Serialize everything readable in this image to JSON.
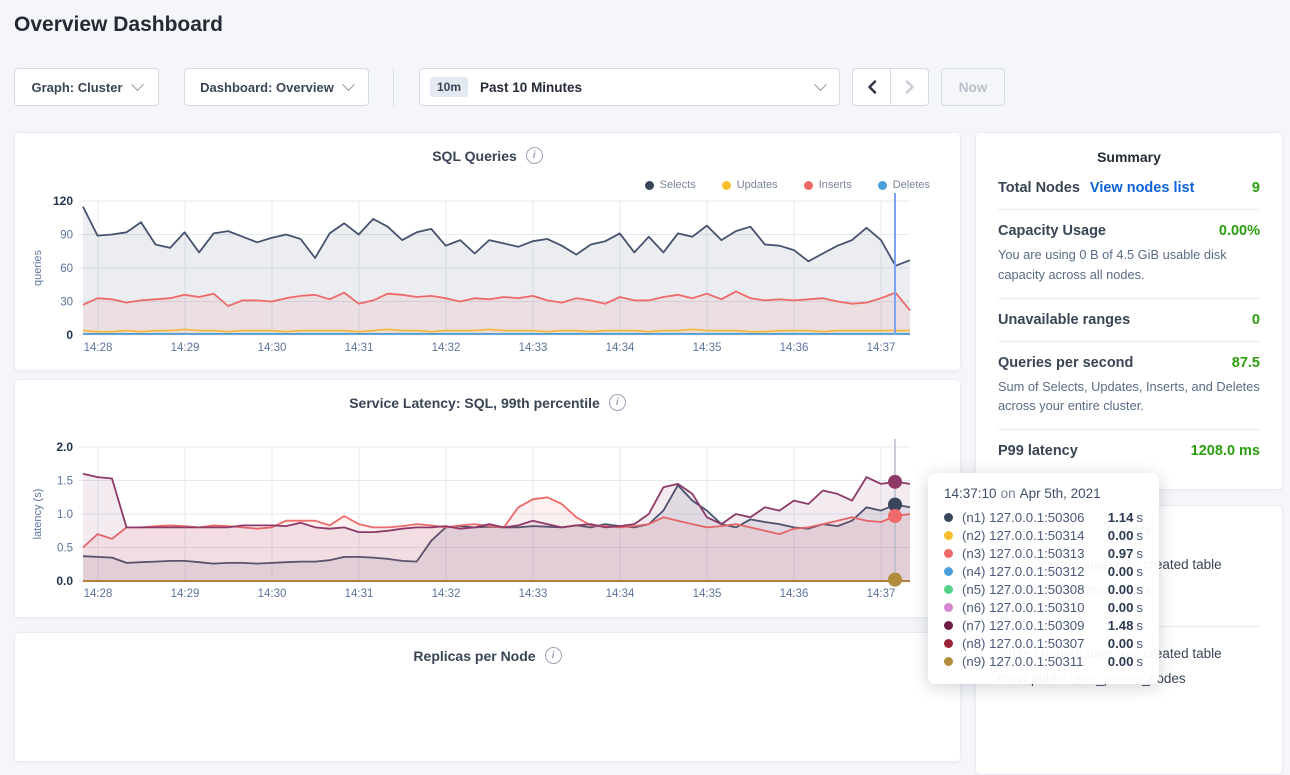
{
  "page_title": "Overview Dashboard",
  "controls": {
    "graph_dropdown": "Graph: Cluster",
    "dashboard_dropdown": "Dashboard: Overview",
    "time_chip": "10m",
    "time_label": "Past 10 Minutes",
    "now_label": "Now"
  },
  "chart_data": [
    {
      "type": "line",
      "title": "SQL Queries",
      "ylabel": "queries",
      "ylim": [
        0,
        120
      ],
      "yticks": [
        "0",
        "30",
        "60",
        "90",
        "120"
      ],
      "x_labels": [
        "14:28",
        "14:29",
        "14:30",
        "14:31",
        "14:32",
        "14:33",
        "14:34",
        "14:35",
        "14:36",
        "14:37"
      ],
      "legend_position": "top-right",
      "grid": true,
      "series": [
        {
          "name": "Selects",
          "color": "#46536e",
          "fill_opacity": 0.1,
          "values": [
            115,
            89,
            90,
            92,
            101,
            81,
            78,
            92,
            74,
            91,
            93,
            88,
            83,
            87,
            90,
            86,
            69,
            91,
            100,
            90,
            104,
            97,
            85,
            92,
            95,
            80,
            85,
            73,
            85,
            82,
            79,
            84,
            86,
            80,
            72,
            81,
            84,
            91,
            74,
            88,
            74,
            91,
            88,
            98,
            85,
            93,
            97,
            81,
            80,
            76,
            66,
            73,
            80,
            85,
            96,
            85,
            62,
            67
          ]
        },
        {
          "name": "Updates",
          "color": "#f5c343",
          "fill_opacity": 0.12,
          "values": [
            4,
            3,
            3,
            4,
            3,
            4,
            4,
            5,
            4,
            4,
            3,
            4,
            4,
            4,
            3,
            4,
            4,
            4,
            4,
            3,
            4,
            5,
            4,
            4,
            3,
            4,
            4,
            4,
            5,
            4,
            4,
            4,
            3,
            4,
            4,
            3,
            4,
            4,
            4,
            3,
            4,
            4,
            5,
            4,
            4,
            4,
            3,
            3,
            4,
            4,
            4,
            3,
            4,
            4,
            4,
            4,
            4,
            4
          ]
        },
        {
          "name": "Inserts",
          "color": "#ee6a6a",
          "fill_opacity": 0.1,
          "values": [
            27,
            33,
            32,
            29,
            31,
            32,
            33,
            36,
            34,
            37,
            26,
            31,
            31,
            30,
            33,
            35,
            36,
            32,
            38,
            28,
            31,
            37,
            36,
            34,
            35,
            33,
            30,
            33,
            32,
            34,
            33,
            35,
            31,
            29,
            33,
            31,
            28,
            34,
            31,
            31,
            34,
            36,
            33,
            37,
            32,
            39,
            33,
            31,
            32,
            31,
            32,
            33,
            30,
            28,
            29,
            33,
            38,
            22
          ]
        },
        {
          "name": "Deletes",
          "color": "#4a9fd9",
          "fill_opacity": 0.1,
          "values": [
            1,
            1
          ]
        }
      ],
      "hover_time": "14:37:10"
    },
    {
      "type": "line",
      "title": "Service Latency: SQL, 99th percentile",
      "ylabel": "latency (s)",
      "ylim": [
        0,
        2.0
      ],
      "yticks": [
        "0.0",
        "0.5",
        "1.0",
        "1.5",
        "2.0"
      ],
      "x_labels": [
        "14:28",
        "14:29",
        "14:30",
        "14:31",
        "14:32",
        "14:33",
        "14:34",
        "14:35",
        "14:36",
        "14:37"
      ],
      "grid": true,
      "series": [
        {
          "name": "(n1) 127.0.0.1:50306",
          "color": "#46536e",
          "fill_opacity": 0.1,
          "values": [
            0.37,
            0.36,
            0.35,
            0.27,
            0.28,
            0.29,
            0.3,
            0.3,
            0.28,
            0.26,
            0.27,
            0.27,
            0.26,
            0.27,
            0.28,
            0.29,
            0.29,
            0.31,
            0.36,
            0.36,
            0.35,
            0.33,
            0.3,
            0.29,
            0.6,
            0.8,
            0.82,
            0.8,
            0.81,
            0.8,
            0.8,
            0.82,
            0.81,
            0.8,
            0.83,
            0.8,
            0.85,
            0.82,
            0.8,
            0.85,
            1.05,
            1.43,
            1.2,
            1.05,
            0.85,
            0.8,
            0.92,
            0.88,
            0.85,
            0.8,
            0.78,
            0.85,
            0.82,
            0.9,
            1.1,
            1.05,
            1.14,
            1.1
          ]
        },
        {
          "name": "(n2) 127.0.0.1:50314",
          "color": "#f8bf2a",
          "fill_opacity": 0,
          "values": [
            0,
            0
          ]
        },
        {
          "name": "(n3) 127.0.0.1:50313",
          "color": "#ee6a6a",
          "fill_opacity": 0.1,
          "values": [
            0.5,
            0.7,
            0.63,
            0.8,
            0.8,
            0.82,
            0.83,
            0.82,
            0.8,
            0.83,
            0.82,
            0.8,
            0.78,
            0.8,
            0.9,
            0.9,
            0.9,
            0.83,
            0.97,
            0.85,
            0.8,
            0.8,
            0.82,
            0.85,
            0.83,
            0.8,
            0.83,
            0.85,
            0.82,
            0.8,
            1.1,
            1.22,
            1.25,
            1.15,
            0.95,
            0.83,
            0.82,
            0.8,
            0.82,
            0.85,
            0.95,
            0.9,
            0.85,
            0.8,
            0.82,
            0.85,
            0.8,
            0.75,
            0.7,
            0.78,
            0.8,
            0.85,
            0.9,
            0.95,
            0.9,
            0.88,
            0.97,
            1.0
          ]
        },
        {
          "name": "(n4) 127.0.0.1:50312",
          "color": "#499fd9",
          "fill_opacity": 0,
          "values": [
            0,
            0
          ]
        },
        {
          "name": "(n5) 127.0.0.1:50308",
          "color": "#55d38b",
          "fill_opacity": 0,
          "values": [
            0,
            0
          ]
        },
        {
          "name": "(n6) 127.0.0.1:50310",
          "color": "#d787cf",
          "fill_opacity": 0,
          "values": [
            0,
            0
          ]
        },
        {
          "name": "(n7) 127.0.0.1:50309",
          "color": "#8d3a68",
          "fill_opacity": 0.1,
          "values": [
            1.6,
            1.55,
            1.53,
            0.8,
            0.8,
            0.8,
            0.8,
            0.8,
            0.8,
            0.8,
            0.8,
            0.83,
            0.83,
            0.83,
            0.82,
            0.87,
            0.8,
            0.78,
            0.8,
            0.73,
            0.73,
            0.75,
            0.78,
            0.8,
            0.8,
            0.82,
            0.78,
            0.8,
            0.85,
            0.8,
            0.83,
            0.9,
            0.85,
            0.8,
            0.83,
            0.85,
            0.8,
            0.82,
            0.85,
            1.0,
            1.4,
            1.45,
            1.3,
            0.95,
            0.85,
            1.0,
            0.95,
            1.1,
            1.05,
            1.2,
            1.15,
            1.35,
            1.3,
            1.2,
            1.55,
            1.45,
            1.48,
            1.45
          ]
        },
        {
          "name": "(n8) 127.0.0.1:50307",
          "color": "#9a2537",
          "fill_opacity": 0,
          "values": [
            0,
            0
          ]
        },
        {
          "name": "(n9) 127.0.0.1:50311",
          "color": "#b08c3b",
          "fill_opacity": 0,
          "values": [
            0,
            0
          ]
        }
      ],
      "hover_time": "14:37:10"
    },
    {
      "type": "line",
      "title": "Replicas per Node",
      "series": []
    }
  ],
  "summary": {
    "title": "Summary",
    "rows": [
      {
        "label": "Total Nodes",
        "link": "View nodes list",
        "value": "9",
        "subtext": ""
      },
      {
        "label": "Capacity Usage",
        "value": "0.00%",
        "subtext": "You are using 0 B of 4.5 GiB usable disk capacity across all nodes."
      },
      {
        "label": "Unavailable ranges",
        "value": "0",
        "subtext": ""
      },
      {
        "label": "Queries per second",
        "value": "87.5",
        "subtext": "Sum of Selects, Updates, Inserts, and Deletes across your entire cluster."
      },
      {
        "label": "P99 latency",
        "value": "1208.0 ms",
        "subtext": ""
      }
    ]
  },
  "events": {
    "title": "Events",
    "items": [
      {
        "message": "Table created: user root created table",
        "object": "movr.public.promo_codes"
      },
      {
        "message": "Table created: user root created table",
        "object": "movr.public.user_promo_codes"
      }
    ]
  },
  "tooltip": {
    "time": "14:37:10",
    "on_word": "on",
    "date": "Apr 5th, 2021",
    "rows": [
      {
        "label": "(n1) 127.0.0.1:50306",
        "value": "1.14",
        "unit": "s",
        "color": "#39455b"
      },
      {
        "label": "(n2) 127.0.0.1:50314",
        "value": "0.00",
        "unit": "s",
        "color": "#f8bf2a"
      },
      {
        "label": "(n3) 127.0.0.1:50313",
        "value": "0.97",
        "unit": "s",
        "color": "#ee6a6a"
      },
      {
        "label": "(n4) 127.0.0.1:50312",
        "value": "0.00",
        "unit": "s",
        "color": "#499fd9"
      },
      {
        "label": "(n5) 127.0.0.1:50308",
        "value": "0.00",
        "unit": "s",
        "color": "#55d38b"
      },
      {
        "label": "(n6) 127.0.0.1:50310",
        "value": "0.00",
        "unit": "s",
        "color": "#d787cf"
      },
      {
        "label": "(n7) 127.0.0.1:50309",
        "value": "1.48",
        "unit": "s",
        "color": "#701d45"
      },
      {
        "label": "(n8) 127.0.0.1:50307",
        "value": "0.00",
        "unit": "s",
        "color": "#9a2537"
      },
      {
        "label": "(n9) 127.0.0.1:50311",
        "value": "0.00",
        "unit": "s",
        "color": "#b08c3b"
      }
    ]
  },
  "colors": {
    "green_value": "#2b9f0f",
    "link_blue": "#0e62d8",
    "hover_line_sql": "#7da2f2",
    "hover_line_latency": "#b7bdc9",
    "gridline": "#e4e9f2"
  }
}
